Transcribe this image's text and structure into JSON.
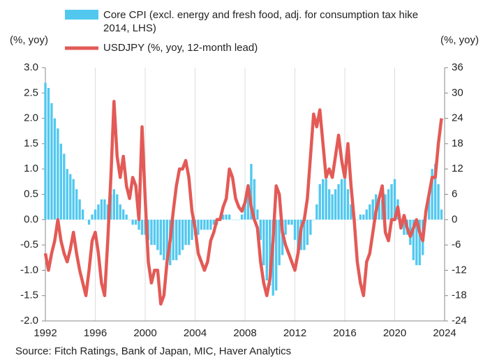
{
  "chart_data": {
    "type": "bar-line",
    "left_unit": "(%, yoy)",
    "right_unit": "(%, yoy)",
    "source": "Source: Fitch Ratings, Bank of Japan, MIC, Haver Analytics",
    "x": [
      1992,
      1992.25,
      1992.5,
      1992.75,
      1993,
      1993.25,
      1993.5,
      1993.75,
      1994,
      1994.25,
      1994.5,
      1994.75,
      1995,
      1995.25,
      1995.5,
      1995.75,
      1996,
      1996.25,
      1996.5,
      1996.75,
      1997,
      1997.25,
      1997.5,
      1997.75,
      1998,
      1998.25,
      1998.5,
      1998.75,
      1999,
      1999.25,
      1999.5,
      1999.75,
      2000,
      2000.25,
      2000.5,
      2000.75,
      2001,
      2001.25,
      2001.5,
      2001.75,
      2002,
      2002.25,
      2002.5,
      2002.75,
      2003,
      2003.25,
      2003.5,
      2003.75,
      2004,
      2004.25,
      2004.5,
      2004.75,
      2005,
      2005.25,
      2005.5,
      2005.75,
      2006,
      2006.25,
      2006.5,
      2006.75,
      2007,
      2007.25,
      2007.5,
      2007.75,
      2008,
      2008.25,
      2008.5,
      2008.75,
      2009,
      2009.25,
      2009.5,
      2009.75,
      2010,
      2010.25,
      2010.5,
      2010.75,
      2011,
      2011.25,
      2011.5,
      2011.75,
      2012,
      2012.25,
      2012.5,
      2012.75,
      2013,
      2013.25,
      2013.5,
      2013.75,
      2014,
      2014.25,
      2014.5,
      2014.75,
      2015,
      2015.25,
      2015.5,
      2015.75,
      2016,
      2016.25,
      2016.5,
      2016.75,
      2017,
      2017.25,
      2017.5,
      2017.75,
      2018,
      2018.25,
      2018.5,
      2018.75,
      2019,
      2019.25,
      2019.5,
      2019.75,
      2020,
      2020.25,
      2020.5,
      2020.75,
      2021,
      2021.25,
      2021.5,
      2021.75,
      2022,
      2022.25,
      2022.5,
      2022.75,
      2023,
      2023.25,
      2023.5,
      2023.75
    ],
    "series": [
      {
        "name": "Core CPI (excl. energy and fresh food, adj. for consumption tax hike 2014, LHS)",
        "kind": "bar",
        "axis": "y",
        "color": "#52c8ef",
        "values": [
          2.7,
          2.6,
          2.3,
          2.0,
          1.8,
          1.5,
          1.3,
          1.0,
          0.9,
          0.8,
          0.6,
          0.4,
          0.2,
          0.0,
          -0.1,
          0.1,
          0.2,
          0.3,
          0.4,
          0.4,
          0.3,
          0.5,
          0.6,
          0.5,
          0.3,
          0.2,
          0.1,
          0.0,
          -0.1,
          -0.1,
          -0.2,
          -0.3,
          -0.3,
          -0.4,
          -0.5,
          -0.5,
          -0.6,
          -0.7,
          -0.8,
          -0.8,
          -0.9,
          -0.8,
          -0.8,
          -0.7,
          -0.6,
          -0.5,
          -0.5,
          -0.4,
          -0.3,
          -0.3,
          -0.2,
          -0.2,
          -0.2,
          -0.2,
          -0.1,
          -0.1,
          0.0,
          0.1,
          0.1,
          0.1,
          0.0,
          0.0,
          0.0,
          0.1,
          0.3,
          0.7,
          1.1,
          0.8,
          0.2,
          -0.4,
          -0.9,
          -1.2,
          -1.3,
          -1.5,
          -1.4,
          -0.9,
          -0.7,
          -0.3,
          -0.1,
          -0.1,
          -0.4,
          -0.6,
          -0.6,
          -0.6,
          -0.5,
          -0.3,
          0.0,
          0.3,
          0.7,
          0.8,
          0.8,
          0.6,
          0.5,
          0.6,
          0.7,
          0.8,
          0.8,
          0.6,
          0.3,
          0.0,
          0.0,
          0.1,
          0.1,
          0.2,
          0.3,
          0.4,
          0.5,
          0.4,
          0.4,
          0.5,
          0.6,
          0.7,
          0.8,
          0.4,
          0.0,
          -0.3,
          -0.3,
          -0.5,
          -0.8,
          -0.9,
          -0.9,
          -0.7,
          0.0,
          0.5,
          1.0,
          1.1,
          0.7,
          0.2
        ]
      },
      {
        "name": "USDJPY (%, yoy, 12-month lead)",
        "kind": "line",
        "axis": "y2",
        "color": "#e35a56",
        "values": [
          -8,
          -12,
          -8,
          -5,
          0,
          -5,
          -8,
          -10,
          -7,
          -3,
          -8,
          -12,
          -15,
          -18,
          -12,
          -5,
          -3,
          -8,
          -15,
          -18,
          -5,
          10,
          28,
          15,
          10,
          15,
          8,
          5,
          10,
          8,
          0,
          22,
          5,
          -10,
          -15,
          -12,
          -12,
          -20,
          -18,
          -10,
          -5,
          2,
          8,
          12,
          12,
          14,
          10,
          2,
          -2,
          -8,
          -10,
          -12,
          -10,
          -5,
          -3,
          0,
          0,
          3,
          5,
          12,
          10,
          5,
          3,
          2,
          4,
          8,
          3,
          0,
          -2,
          -10,
          -15,
          -18,
          -14,
          -5,
          8,
          6,
          -3,
          -6,
          -8,
          -10,
          -12,
          -8,
          -2,
          0,
          5,
          15,
          25,
          22,
          26,
          18,
          10,
          12,
          10,
          15,
          20,
          14,
          10,
          18,
          8,
          0,
          -10,
          -15,
          -18,
          -10,
          -8,
          -3,
          2,
          5,
          8,
          -3,
          -5,
          0,
          0,
          3,
          -2,
          1,
          -2,
          -4,
          -2,
          0,
          -3,
          -5,
          2,
          6,
          10,
          10,
          18,
          24
        ]
      }
    ],
    "xlim": [
      1992,
      2024
    ],
    "xticks": [
      1992,
      1996,
      2000,
      2004,
      2008,
      2012,
      2016,
      2020,
      2024
    ],
    "ylim": [
      -2,
      3
    ],
    "yticks": [
      {
        "value": 3,
        "label": "3.0"
      },
      2.5,
      {
        "value": 2,
        "label": "2.0"
      },
      1.5,
      {
        "value": 1,
        "label": "1.0"
      },
      0.5,
      {
        "value": 0,
        "label": "0.0"
      },
      -0.5,
      {
        "value": -1,
        "label": "-1.0"
      },
      -1.5,
      {
        "value": -2,
        "label": "-2.0"
      }
    ],
    "y2lim": [
      -24,
      36
    ],
    "y2ticks": [
      36,
      30,
      24,
      18,
      12,
      6,
      0,
      -6,
      -12,
      -18,
      -24
    ],
    "grid": "x"
  }
}
